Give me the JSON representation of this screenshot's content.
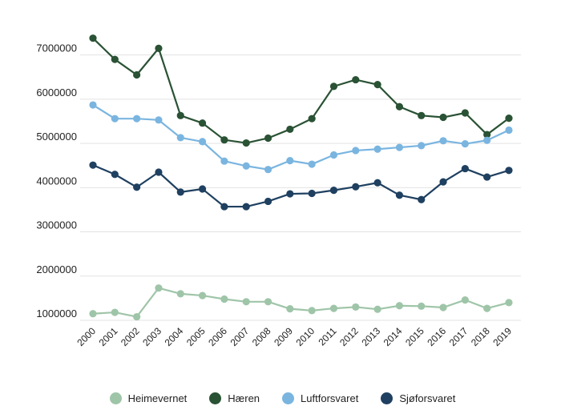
{
  "chart_data": {
    "type": "line",
    "x": [
      "2000",
      "2001",
      "2002",
      "2003",
      "2004",
      "2005",
      "2006",
      "2007",
      "2008",
      "2009",
      "2010",
      "2011",
      "2012",
      "2013",
      "2014",
      "2015",
      "2016",
      "2017",
      "2018",
      "2019"
    ],
    "y_ticks": [
      "1000000",
      "2000000",
      "3000000",
      "4000000",
      "5000000",
      "6000000",
      "7000000"
    ],
    "ylim": [
      1000000,
      7700000
    ],
    "grid": true,
    "legend_position": "bottom",
    "series": [
      {
        "name": "Heimevernet",
        "color": "#9fc5a8",
        "values": [
          1150000,
          1180000,
          1080000,
          1730000,
          1600000,
          1560000,
          1480000,
          1420000,
          1420000,
          1260000,
          1220000,
          1270000,
          1300000,
          1250000,
          1330000,
          1320000,
          1290000,
          1460000,
          1270000,
          1400000
        ]
      },
      {
        "name": "Hæren",
        "color": "#2a5234",
        "values": [
          7380000,
          6900000,
          6550000,
          7150000,
          5630000,
          5460000,
          5080000,
          5010000,
          5120000,
          5320000,
          5560000,
          6290000,
          6440000,
          6330000,
          5830000,
          5630000,
          5590000,
          5690000,
          5200000,
          5570000
        ]
      },
      {
        "name": "Luftforsvaret",
        "color": "#7ab5e0",
        "values": [
          5870000,
          5560000,
          5560000,
          5530000,
          5130000,
          5040000,
          4600000,
          4490000,
          4410000,
          4610000,
          4530000,
          4740000,
          4840000,
          4870000,
          4910000,
          4950000,
          5060000,
          4990000,
          5070000,
          5300000
        ]
      },
      {
        "name": "Sjøforsvaret",
        "color": "#1f4060",
        "values": [
          4510000,
          4300000,
          4010000,
          4350000,
          3900000,
          3970000,
          3570000,
          3570000,
          3690000,
          3860000,
          3870000,
          3940000,
          4020000,
          4110000,
          3830000,
          3730000,
          4130000,
          4430000,
          4240000,
          4390000
        ]
      }
    ]
  }
}
